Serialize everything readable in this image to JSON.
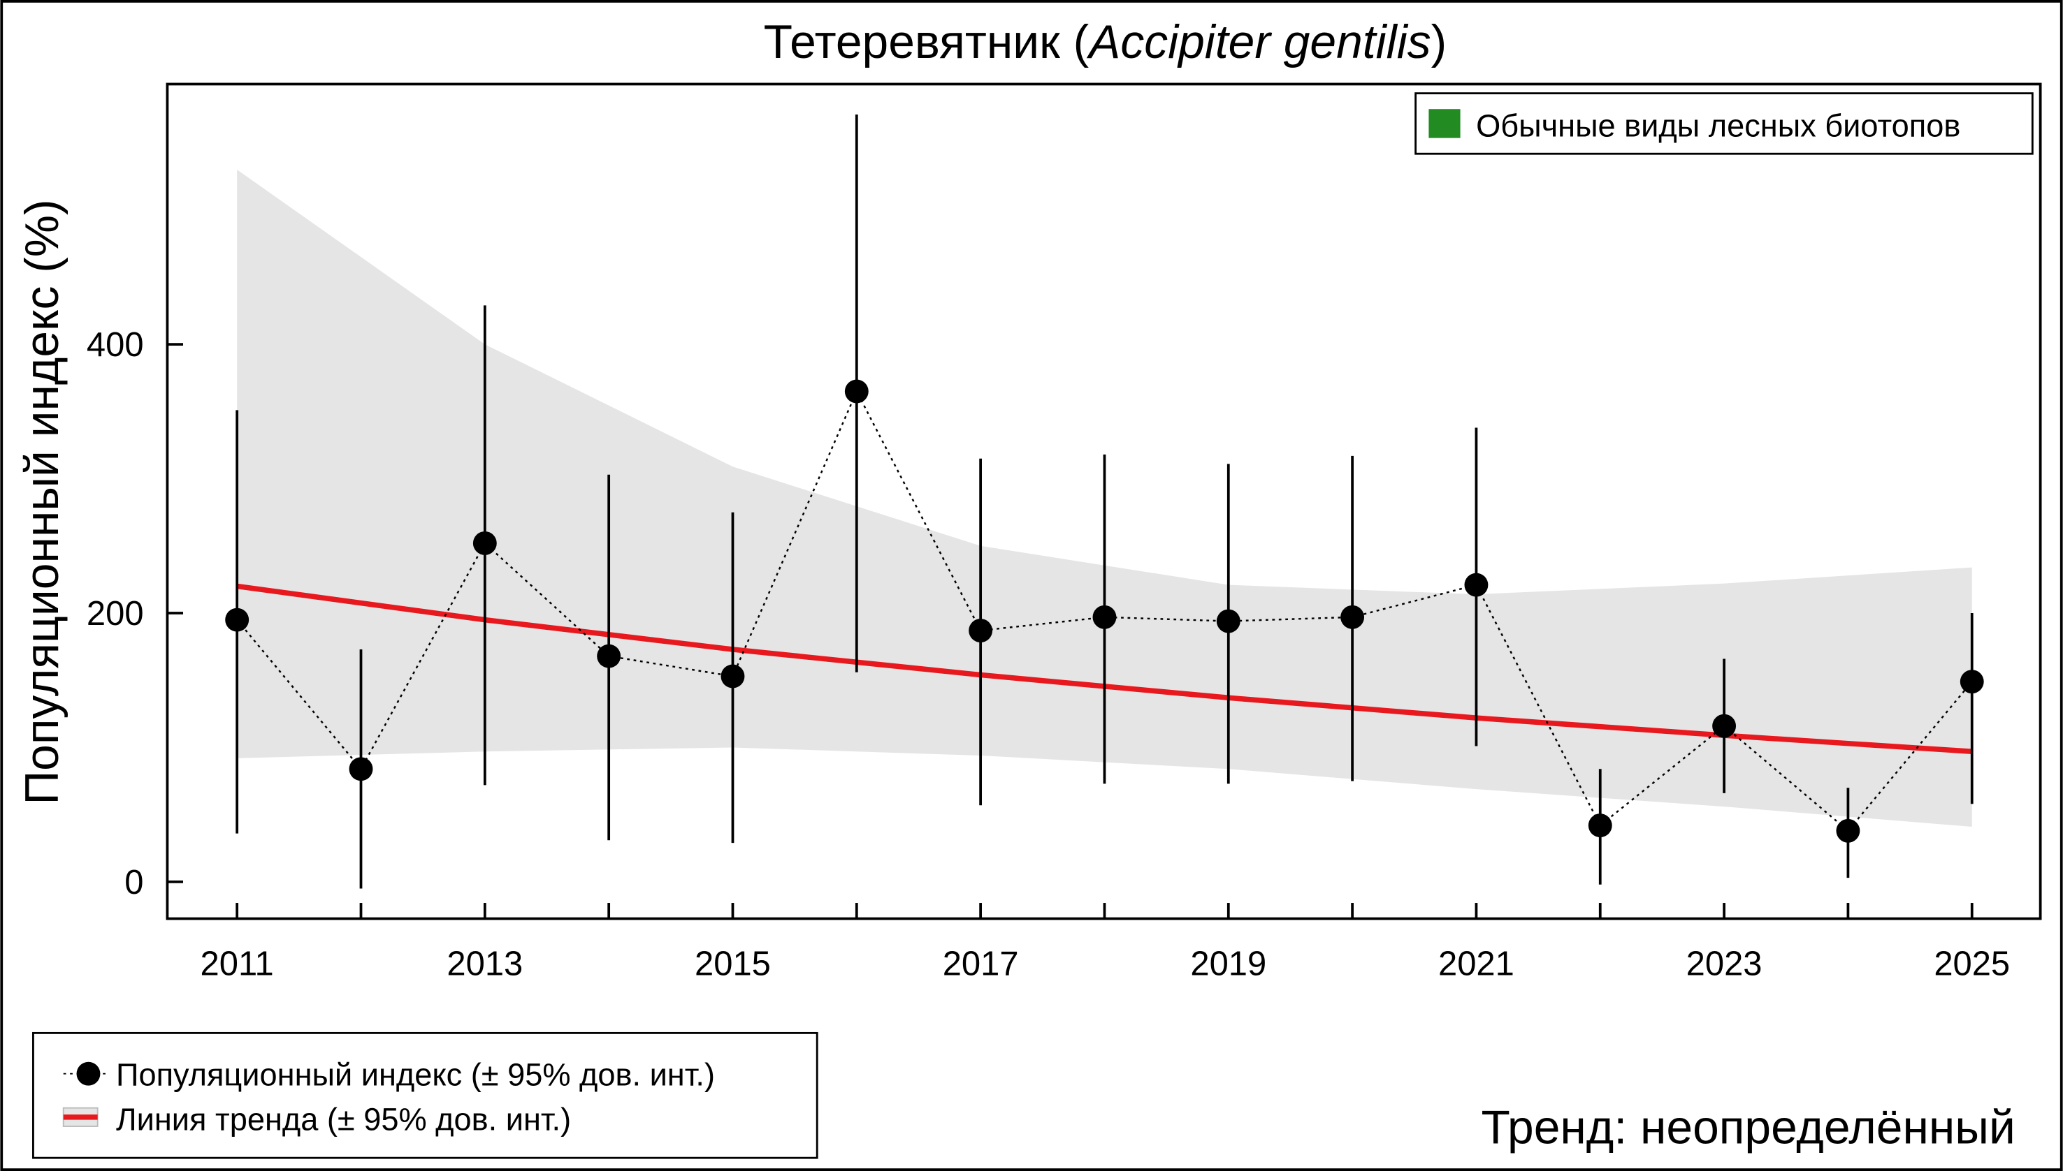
{
  "chart_data": {
    "type": "line",
    "title_main": "Тетеревятник (",
    "title_latin": "Accipiter gentilis",
    "title_close": ")",
    "ylabel": "Популяционный индекс (%)",
    "xlabel": "",
    "xlim": [
      2010.5,
      2025.5
    ],
    "ylim": [
      -27,
      594
    ],
    "y_ticks": [
      0,
      200,
      400
    ],
    "x_ticks": [
      2011,
      2012,
      2013,
      2014,
      2015,
      2016,
      2017,
      2018,
      2019,
      2020,
      2021,
      2022,
      2023,
      2024,
      2025
    ],
    "x_tick_labels": [
      "2011",
      "2013",
      "2015",
      "2017",
      "2019",
      "2021",
      "2023",
      "2025"
    ],
    "grid": false,
    "series": [
      {
        "name": "Популяционный индекс (± 95% дов. инт.)",
        "x": [
          2011,
          2012,
          2013,
          2014,
          2015,
          2016,
          2017,
          2018,
          2019,
          2020,
          2021,
          2022,
          2023,
          2024,
          2025
        ],
        "values": [
          195,
          84,
          252,
          168,
          153,
          365,
          187,
          197,
          194,
          197,
          221,
          42,
          116,
          38,
          149
        ],
        "ci_upper": [
          351,
          173,
          429,
          303,
          275,
          571,
          315,
          318,
          311,
          317,
          338,
          84,
          166,
          70,
          200
        ],
        "ci_lower": [
          36,
          -5,
          72,
          31,
          29,
          156,
          57,
          73,
          73,
          75,
          101,
          -2,
          66,
          3,
          58
        ],
        "color": "#000000"
      },
      {
        "name": "Линия тренда (± 95% дов. инт.)",
        "x": [
          2011,
          2013,
          2015,
          2017,
          2019,
          2021,
          2023,
          2025
        ],
        "values": [
          220,
          195,
          173,
          154,
          137,
          122,
          109,
          97
        ],
        "ci_upper": [
          530,
          400,
          309,
          250,
          221,
          214,
          222,
          234
        ],
        "ci_lower": [
          92,
          97,
          100,
          94,
          84,
          69,
          56,
          41
        ],
        "color": "#e8191e",
        "band_color": "#e5e5e5"
      }
    ],
    "group_legend": {
      "label": "Обычные виды лесных биотопов",
      "color": "#228b22",
      "placement": "top-right"
    },
    "series_legend_placement": "bottom-left",
    "trend_text": "Тренд: неопределённый"
  }
}
